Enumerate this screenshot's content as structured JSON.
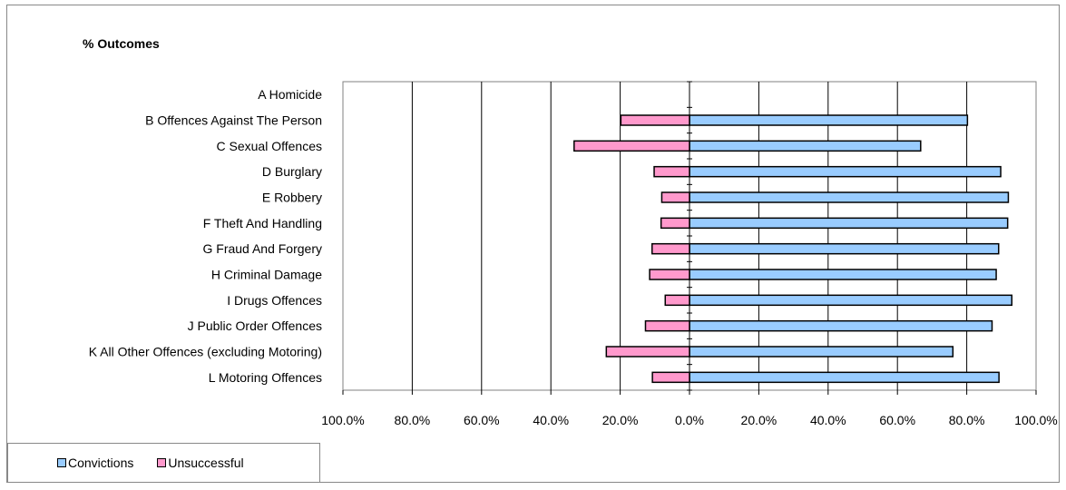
{
  "chart_data": {
    "type": "bar",
    "orientation": "horizontal",
    "stacked": "diverging",
    "title": "% Outcomes",
    "categories": [
      "A Homicide",
      "B Offences Against The Person",
      "C Sexual Offences",
      "D Burglary",
      "E Robbery",
      "F Theft And Handling",
      "G Fraud And Forgery",
      "H Criminal Damage",
      "I Drugs Offences",
      "J Public Order Offences",
      "K All Other Offences (excluding Motoring)",
      "L Motoring Offences"
    ],
    "series": [
      {
        "name": "Convictions",
        "color": "#99ccff",
        "values": [
          0,
          80.2,
          66.7,
          89.8,
          92.0,
          91.8,
          89.2,
          88.5,
          93.0,
          87.3,
          76.0,
          89.3
        ]
      },
      {
        "name": "Unsuccessful",
        "color": "#ff99cc",
        "values": [
          0,
          -19.8,
          -33.3,
          -10.2,
          -8.0,
          -8.2,
          -10.8,
          -11.5,
          -7.0,
          -12.7,
          -24.0,
          -10.7
        ]
      }
    ],
    "xlim": [
      -100,
      100
    ],
    "x_tick_labels": [
      "100.0%",
      "80.0%",
      "60.0%",
      "40.0%",
      "20.0%",
      "0.0%",
      "20.0%",
      "40.0%",
      "60.0%",
      "80.0%",
      "100.0%"
    ],
    "grid": "vertical",
    "legend_position": "bottom-left"
  }
}
